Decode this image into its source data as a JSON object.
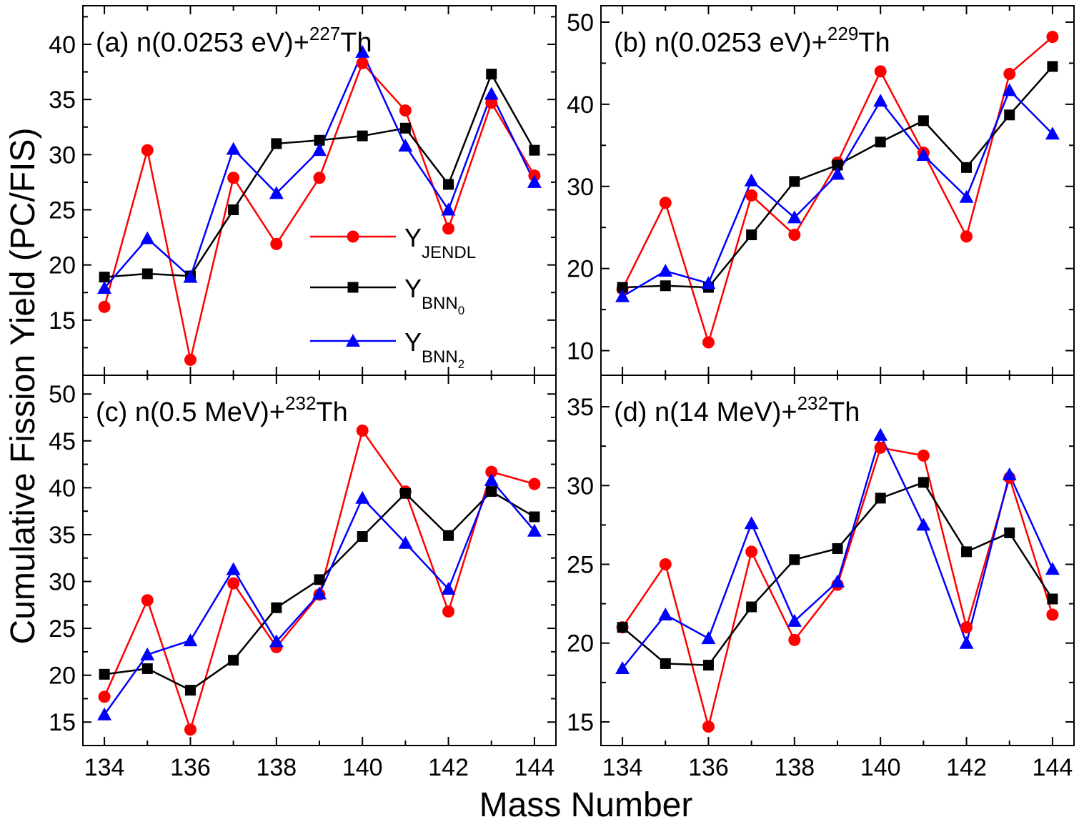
{
  "figure": {
    "xlabel": "Mass Number",
    "ylabel": "Cumulative Fission Yield (PC/FIS)"
  },
  "colors": {
    "JENDL": "#ff0000",
    "BNN0": "#000000",
    "BNN2": "#0000ff"
  },
  "legend": [
    {
      "key": "JENDL",
      "base": "Y",
      "sub": "JENDL",
      "subsub": ""
    },
    {
      "key": "BNN0",
      "base": "Y",
      "sub": "BNN",
      "subsub": "0"
    },
    {
      "key": "BNN2",
      "base": "Y",
      "sub": "BNN",
      "subsub": "2"
    }
  ],
  "chart_data": [
    {
      "type": "line",
      "label_prefix": "(a) n(0.0253 eV)+",
      "label_sup": "227",
      "label_suffix": "Th",
      "x": [
        134,
        135,
        136,
        137,
        138,
        139,
        140,
        141,
        142,
        143,
        144
      ],
      "xticks": [
        134,
        136,
        138,
        140,
        142,
        144
      ],
      "ylim": [
        10,
        43.5
      ],
      "yticks": [
        15,
        20,
        25,
        30,
        35,
        40
      ],
      "series": [
        {
          "key": "JENDL",
          "values": [
            16.2,
            30.4,
            11.4,
            27.9,
            21.9,
            27.9,
            38.3,
            34.0,
            23.3,
            34.7,
            28.1
          ]
        },
        {
          "key": "BNN0",
          "values": [
            18.9,
            19.2,
            19.0,
            25.0,
            31.0,
            31.3,
            31.7,
            32.4,
            27.3,
            37.3,
            30.4
          ]
        },
        {
          "key": "BNN2",
          "values": [
            17.9,
            22.4,
            18.9,
            30.5,
            26.5,
            30.4,
            39.3,
            30.8,
            25.0,
            35.5,
            27.5
          ]
        }
      ]
    },
    {
      "type": "line",
      "label_prefix": "(b) n(0.0253 eV)+",
      "label_sup": "229",
      "label_suffix": "Th",
      "x": [
        134,
        135,
        136,
        137,
        138,
        139,
        140,
        141,
        142,
        143,
        144
      ],
      "xticks": [
        134,
        136,
        138,
        140,
        142,
        144
      ],
      "ylim": [
        7,
        52
      ],
      "yticks": [
        10,
        20,
        30,
        40,
        50
      ],
      "series": [
        {
          "key": "JENDL",
          "values": [
            17.5,
            28.0,
            11.0,
            28.9,
            24.1,
            32.9,
            44.0,
            34.1,
            23.9,
            43.7,
            48.2
          ]
        },
        {
          "key": "BNN0",
          "values": [
            17.7,
            17.9,
            17.7,
            24.1,
            30.6,
            32.6,
            35.4,
            38.0,
            32.3,
            38.7,
            44.6
          ]
        },
        {
          "key": "BNN2",
          "values": [
            16.6,
            19.7,
            18.2,
            30.7,
            26.2,
            31.5,
            40.4,
            33.8,
            28.7,
            41.7,
            36.4
          ]
        }
      ]
    },
    {
      "type": "line",
      "label_prefix": "(c) n(0.5 MeV)+",
      "label_sup": "232",
      "label_suffix": "Th",
      "x": [
        134,
        135,
        136,
        137,
        138,
        139,
        140,
        141,
        142,
        143,
        144
      ],
      "xticks": [
        134,
        136,
        138,
        140,
        142,
        144
      ],
      "ylim": [
        12.5,
        52
      ],
      "yticks": [
        15,
        20,
        25,
        30,
        35,
        40,
        45,
        50
      ],
      "series": [
        {
          "key": "JENDL",
          "values": [
            17.7,
            28.0,
            14.2,
            29.8,
            23.0,
            28.6,
            46.1,
            39.6,
            26.8,
            41.7,
            40.4
          ]
        },
        {
          "key": "BNN0",
          "values": [
            20.1,
            20.7,
            18.4,
            21.6,
            27.2,
            30.2,
            34.8,
            39.4,
            34.9,
            39.6,
            36.9
          ]
        },
        {
          "key": "BNN2",
          "values": [
            15.8,
            22.2,
            23.7,
            31.3,
            23.6,
            28.7,
            38.9,
            34.1,
            29.2,
            40.8,
            35.4
          ]
        }
      ]
    },
    {
      "type": "line",
      "label_prefix": "(d) n(14 MeV)+",
      "label_sup": "232",
      "label_suffix": "Th",
      "x": [
        134,
        135,
        136,
        137,
        138,
        139,
        140,
        141,
        142,
        143,
        144
      ],
      "xticks": [
        134,
        136,
        138,
        140,
        142,
        144
      ],
      "ylim": [
        13.5,
        37
      ],
      "yticks": [
        15,
        20,
        25,
        30,
        35
      ],
      "series": [
        {
          "key": "JENDL",
          "values": [
            21.0,
            25.0,
            14.7,
            25.8,
            20.2,
            23.7,
            32.4,
            31.9,
            21.0,
            30.5,
            21.8
          ]
        },
        {
          "key": "BNN0",
          "values": [
            21.0,
            18.7,
            18.6,
            22.3,
            25.3,
            26.0,
            29.2,
            30.2,
            25.8,
            27.0,
            22.8
          ]
        },
        {
          "key": "BNN2",
          "values": [
            18.4,
            21.8,
            20.3,
            27.6,
            21.4,
            23.9,
            33.2,
            27.5,
            20.0,
            30.7,
            24.7
          ]
        }
      ]
    }
  ]
}
